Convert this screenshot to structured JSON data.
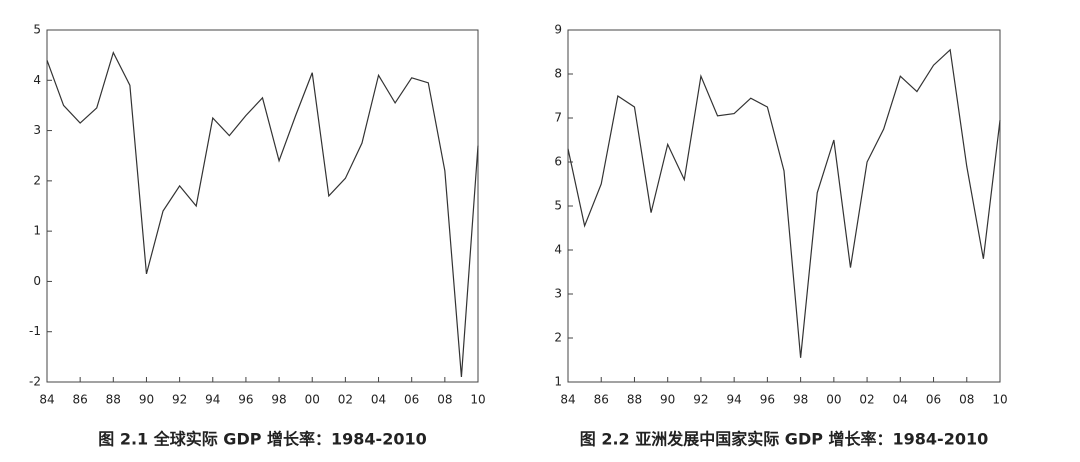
{
  "chart_data": [
    {
      "type": "line",
      "title": "图 2.1 全球实际 GDP 增长率：1984-2010",
      "categories": [
        "84",
        null,
        "86",
        null,
        "88",
        null,
        "90",
        null,
        "92",
        null,
        "94",
        null,
        "96",
        null,
        "98",
        null,
        "00",
        null,
        "02",
        null,
        "04",
        null,
        "06",
        null,
        "08",
        null,
        "10"
      ],
      "values": [
        4.4,
        3.5,
        3.15,
        3.45,
        4.55,
        3.9,
        0.15,
        1.4,
        1.9,
        1.5,
        3.25,
        2.9,
        3.3,
        3.65,
        2.4,
        3.3,
        4.15,
        1.7,
        2.05,
        2.75,
        4.1,
        3.55,
        4.05,
        3.95,
        2.2,
        -1.9,
        2.7
      ],
      "color": "#333333",
      "ylim": [
        -2,
        5
      ],
      "yticks": [
        -2,
        -1,
        0,
        1,
        2,
        3,
        4,
        5
      ]
    },
    {
      "type": "line",
      "title": "图 2.2 亚洲发展中国家实际 GDP 增长率：1984-2010",
      "categories": [
        "84",
        null,
        "86",
        null,
        "88",
        null,
        "90",
        null,
        "92",
        null,
        "94",
        null,
        "96",
        null,
        "98",
        null,
        "00",
        null,
        "02",
        null,
        "04",
        null,
        "06",
        null,
        "08",
        null,
        "10"
      ],
      "values": [
        6.3,
        4.55,
        5.5,
        7.5,
        7.25,
        4.85,
        6.4,
        5.6,
        7.95,
        7.05,
        7.1,
        7.45,
        7.25,
        5.8,
        1.55,
        5.3,
        6.5,
        3.6,
        6.0,
        6.75,
        7.95,
        7.6,
        8.2,
        8.55,
        5.9,
        3.8,
        6.95
      ],
      "color": "#333333",
      "ylim": [
        1,
        9
      ],
      "yticks": [
        1,
        2,
        3,
        4,
        5,
        6,
        7,
        8,
        9
      ]
    }
  ]
}
